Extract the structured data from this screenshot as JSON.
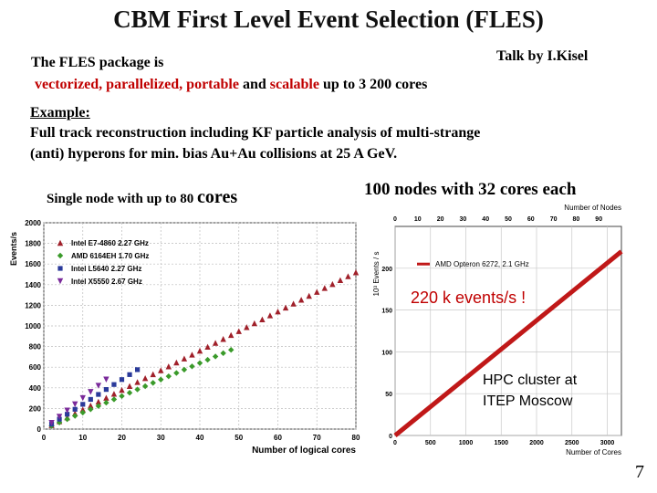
{
  "title": "CBM First Level Event Selection (FLES)",
  "talk": "Talk by I.Kisel",
  "intro": {
    "line1": "The FLES package is",
    "w_vectorized": "vectorized, parallelized, portable",
    "w_and": " and ",
    "w_scalable": "scalable",
    "w_rest": " up to 3 200 cores"
  },
  "example": {
    "label": "Example:",
    "line1": "Full track reconstruction including KF particle analysis  of multi-strange",
    "line2": "(anti) hyperons  for min. bias Au+Au collisions  at 25 A GeV."
  },
  "left_caption": {
    "prefix": "Single node with up to 80 ",
    "big": "cores"
  },
  "right_caption": "100 nodes with 32 cores each",
  "page_number": "7",
  "chart_data": [
    {
      "type": "scatter",
      "ylabel": "Events/s",
      "xlabel": "Number of logical cores",
      "xlim": [
        0,
        80
      ],
      "ylim": [
        0,
        2000
      ],
      "x_ticks": [
        "0",
        "10",
        "20",
        "30",
        "40",
        "50",
        "60",
        "70",
        "80"
      ],
      "y_ticks": [
        "0",
        "200",
        "400",
        "600",
        "800",
        "1000",
        "1200",
        "1400",
        "1600",
        "1800",
        "2000"
      ],
      "legend_position": "top-left",
      "series": [
        {
          "name": "Intel E7-4860 2.27 GHz",
          "color": "#a0202a",
          "marker": "triangle",
          "x": [
            2,
            4,
            6,
            8,
            10,
            12,
            14,
            16,
            18,
            20,
            22,
            24,
            26,
            28,
            30,
            32,
            34,
            36,
            38,
            40,
            42,
            44,
            46,
            48,
            50,
            52,
            54,
            56,
            58,
            60,
            62,
            64,
            66,
            68,
            70,
            72,
            74,
            76,
            78,
            80
          ],
          "y": [
            38,
            76,
            114,
            152,
            190,
            228,
            266,
            304,
            342,
            380,
            418,
            456,
            494,
            532,
            570,
            608,
            646,
            684,
            722,
            760,
            798,
            836,
            874,
            912,
            950,
            988,
            1026,
            1064,
            1102,
            1140,
            1178,
            1216,
            1254,
            1292,
            1330,
            1368,
            1406,
            1444,
            1482,
            1520
          ]
        },
        {
          "name": "AMD 6164EH  1.70 GHz",
          "color": "#3a9a2a",
          "marker": "diamond",
          "x": [
            2,
            4,
            6,
            8,
            10,
            12,
            14,
            16,
            18,
            20,
            22,
            24,
            26,
            28,
            30,
            32,
            34,
            36,
            38,
            40,
            42,
            44,
            46,
            48
          ],
          "y": [
            32,
            64,
            96,
            128,
            160,
            192,
            224,
            256,
            288,
            320,
            352,
            384,
            416,
            448,
            480,
            512,
            544,
            576,
            608,
            640,
            672,
            704,
            736,
            768
          ]
        },
        {
          "name": "Intel L5640  2.27 GHz",
          "color": "#2a3a9a",
          "marker": "square",
          "x": [
            2,
            4,
            6,
            8,
            10,
            12,
            14,
            16,
            18,
            20,
            22,
            24
          ],
          "y": [
            48,
            96,
            144,
            192,
            240,
            288,
            336,
            384,
            432,
            480,
            528,
            576
          ]
        },
        {
          "name": "Intel X5550  2.67 GHz",
          "color": "#7a2a9a",
          "marker": "triangle-down",
          "x": [
            2,
            4,
            6,
            8,
            10,
            12,
            14,
            16
          ],
          "y": [
            60,
            120,
            180,
            240,
            300,
            360,
            420,
            480
          ]
        }
      ]
    },
    {
      "type": "line",
      "ylabel": "10³ Events / s",
      "xlabel": "Number of Cores",
      "x2label": "Number of Nodes",
      "xlim": [
        0,
        3200
      ],
      "ylim": [
        0,
        250
      ],
      "x2lim": [
        0,
        100
      ],
      "x_ticks": [
        "0",
        "500",
        "1000",
        "1500",
        "2000",
        "2500",
        "3000"
      ],
      "x2_ticks": [
        "0",
        "10",
        "20",
        "30",
        "40",
        "50",
        "60",
        "70",
        "80",
        "90"
      ],
      "y_ticks": [
        "0",
        "50",
        "100",
        "150",
        "200"
      ],
      "series": [
        {
          "name": "AMD Opteron 6272, 2.1 GHz",
          "color": "#c01818",
          "x": [
            0,
            3200
          ],
          "y": [
            0,
            220
          ]
        }
      ],
      "annotations": [
        "220 k events/s !",
        "HPC cluster at",
        "ITEP Moscow"
      ]
    }
  ]
}
